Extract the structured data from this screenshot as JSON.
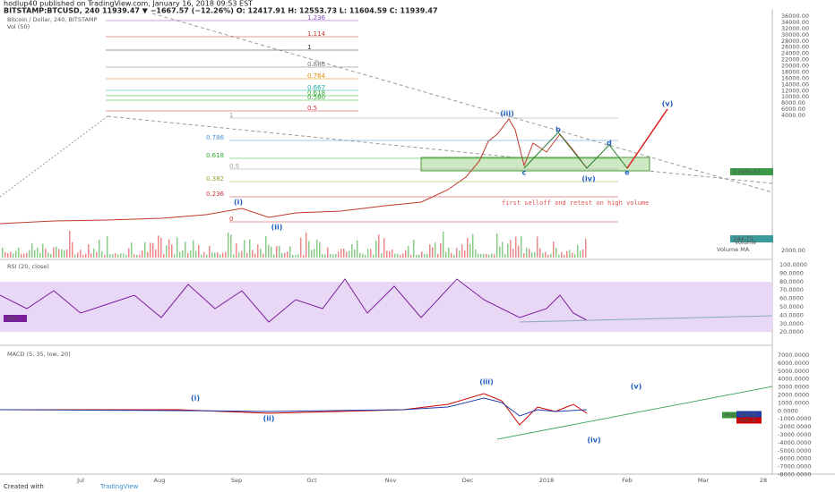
{
  "header": {
    "publisher": "hodlup40 published on TradingView.com, January 16, 2018 09:53 EST",
    "quote": "BITSTAMP:BTCUSD, 240  11939.47 ▼ −1667.57 (−12.26%) O: 12417.91 H: 12553.73 L: 11604.59 C: 11939.47",
    "symbol": "Bitcoin / Dollar, 240, BITSTAMP",
    "volume": "Vol (50)"
  },
  "price_axis": [
    "36000.00",
    "34000.00",
    "32000.00",
    "30000.00",
    "28000.00",
    "26000.00",
    "24000.00",
    "22000.00",
    "20000.00",
    "18000.00",
    "16000.00",
    "14000.00",
    "12000.00",
    "10000.00",
    "8000.00",
    "6000.00",
    "4000.00"
  ],
  "price_axis_low": "2000.00",
  "price_tags": {
    "last": "11939.47",
    "volume": "144.75",
    "volume_name": "Volume",
    "volume_ma": "Volume MA"
  },
  "fib_upper": [
    "1.236",
    "1.114",
    "1",
    "0.886",
    "0.764",
    "0.667",
    "0.618",
    "0.580",
    "0.5"
  ],
  "fib_lower": [
    "1",
    "0.786",
    "0.618",
    "0.5",
    "0.382",
    "0.236",
    "0"
  ],
  "waves_price": [
    "(i)",
    "(ii)",
    "(iii)",
    "b",
    "d",
    "c",
    "e",
    "(iv)",
    "(v)"
  ],
  "annotation": "first selloff and retest on high volume",
  "rsi": {
    "title": "RSI (20, close)",
    "tag": "RSI",
    "axis": [
      "100.0000",
      "90.0000",
      "80.0000",
      "70.0000",
      "60.0000",
      "50.0000",
      "40.0000",
      "30.0000",
      "20.0000"
    ]
  },
  "macd": {
    "title": "MACD (5, 35, low, 20)",
    "tags": [
      "Hist",
      "Signal",
      "MACD"
    ],
    "axis": [
      "7000.0000",
      "6000.0000",
      "5000.0000",
      "4000.0000",
      "3000.0000",
      "2000.0000",
      "1000.0000",
      "0.0000",
      "-1000.0000",
      "-2000.0000",
      "-3000.0000",
      "-4000.0000",
      "-5000.0000",
      "-6000.0000",
      "-7000.0000",
      "-8000.0000"
    ],
    "waves": [
      "(i)",
      "(ii)",
      "(iii)",
      "(iv)",
      "(v)"
    ]
  },
  "time_axis": [
    "Jul",
    "Aug",
    "Sep",
    "Oct",
    "Nov",
    "Dec",
    "2018",
    "Feb",
    "Mar",
    "28"
  ],
  "footer": {
    "created": "Created with",
    "brand": "TradingView"
  }
}
